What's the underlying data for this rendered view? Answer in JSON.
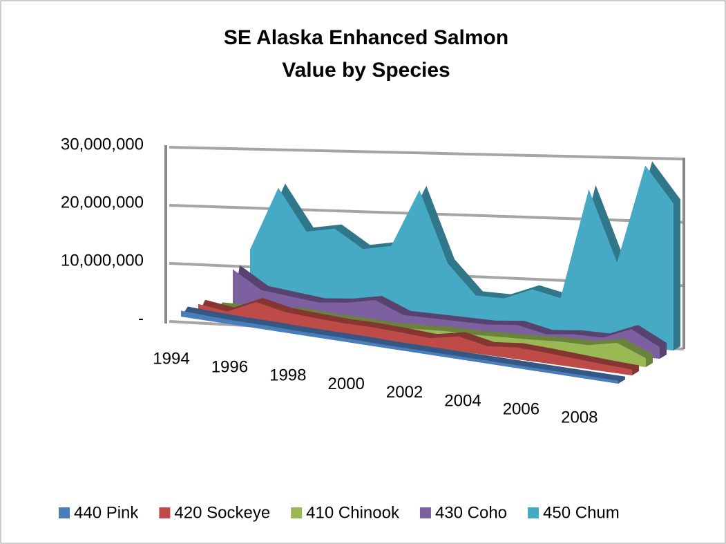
{
  "chart_data": {
    "type": "area3d",
    "title": [
      "SE Alaska Enhanced Salmon",
      "Value by Species"
    ],
    "categories": [
      "1994",
      null,
      "1996",
      null,
      "1998",
      null,
      "2000",
      null,
      "2002",
      null,
      "2004",
      null,
      "2006",
      null,
      "2008",
      null
    ],
    "ylim": [
      0,
      30000000
    ],
    "yticks": [
      {
        "value": 0,
        "label": "-"
      },
      {
        "value": 10000000,
        "label": "10,000,000"
      },
      {
        "value": 20000000,
        "label": "20,000,000"
      },
      {
        "value": 30000000,
        "label": "30,000,000"
      }
    ],
    "grid": true,
    "legend": "bottom",
    "series": [
      {
        "name": "440 Pink",
        "color": "#4a7ebb",
        "values": [
          1000000,
          800000,
          700000,
          700000,
          600000,
          600000,
          600000,
          500000,
          500000,
          500000,
          500000,
          500000,
          500000,
          500000,
          500000,
          500000
        ]
      },
      {
        "name": "420 Sockeye",
        "color": "#be4b48",
        "values": [
          1800000,
          1200000,
          3500000,
          2500000,
          2200000,
          2000000,
          2000000,
          1800000,
          1500000,
          2500000,
          1500000,
          2000000,
          1800000,
          1500000,
          1200000,
          1000000
        ]
      },
      {
        "name": "410 Chinook",
        "color": "#98b954",
        "values": [
          1000000,
          1200000,
          1500000,
          1800000,
          1500000,
          1500000,
          1300000,
          1500000,
          1800000,
          1800000,
          2000000,
          2200000,
          2500000,
          2500000,
          3500000,
          1500000
        ]
      },
      {
        "name": "430 Coho",
        "color": "#7d60a0",
        "values": [
          7000000,
          4000000,
          3500000,
          3000000,
          3500000,
          4500000,
          2500000,
          2500000,
          2500000,
          2500000,
          3000000,
          2000000,
          2500000,
          2500000,
          4500000,
          2000000
        ]
      },
      {
        "name": "450 Chum",
        "color": "#46aac5",
        "values": [
          10000000,
          21000000,
          14000000,
          15000000,
          12000000,
          13000000,
          23000000,
          11000000,
          6000000,
          6000000,
          8000000,
          7000000,
          26000000,
          14000000,
          31000000,
          25000000
        ]
      }
    ]
  }
}
